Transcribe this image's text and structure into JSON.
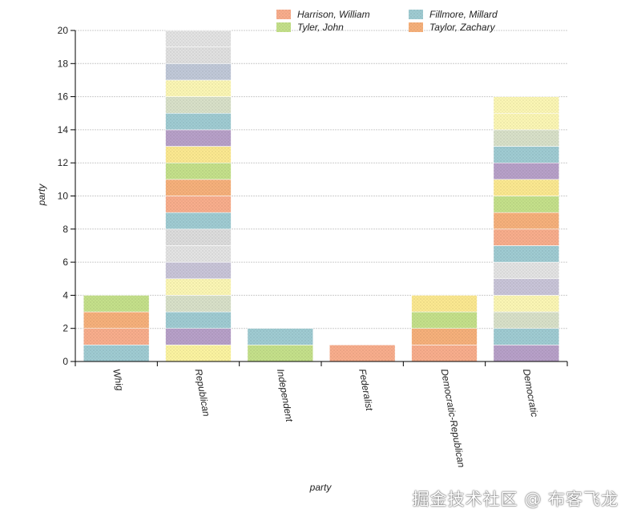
{
  "chart_data": {
    "type": "bar",
    "stacked": true,
    "xlabel": "party",
    "ylabel": "party",
    "ylim": [
      0,
      20
    ],
    "yticks": [
      0,
      2,
      4,
      6,
      8,
      10,
      12,
      14,
      16,
      18,
      20
    ],
    "grid": true,
    "legend_position": "top-right",
    "categories": [
      "Whig",
      "Republican",
      "Independent",
      "Federalist",
      "Democratic-Republican",
      "Democratic"
    ],
    "legend": [
      {
        "name": "Harrison, William",
        "color": "#f8ad8c"
      },
      {
        "name": "Fillmore, Millard",
        "color": "#9fcbd2"
      },
      {
        "name": "Tyler, John",
        "color": "#c4e08a"
      },
      {
        "name": "Taylor, Zachary",
        "color": "#f6b07b"
      }
    ],
    "stacks": [
      [
        "#9fcbd2",
        "#f8ad8c",
        "#f6b07b",
        "#c4e08a"
      ],
      [
        "#fbf3a0",
        "#b7a0c8",
        "#9fcbd2",
        "#d8e0c8",
        "#fbf6b4",
        "#c8c4d8",
        "#e3e3e3",
        "#dcdcdc",
        "#9fcbd2",
        "#f8ad8c",
        "#f6b07b",
        "#c4e08a",
        "#fbe890",
        "#b7a0c8",
        "#9fcbd2",
        "#d8e0c8",
        "#fbf6b4",
        "#c0c8d8",
        "#e0e0e0",
        "#e3e3e3"
      ],
      [
        "#c4e08a",
        "#9fcbd2"
      ],
      [
        "#f8ad8c"
      ],
      [
        "#f8ad8c",
        "#f6b07b",
        "#c4e08a",
        "#fbe890"
      ],
      [
        "#b7a0c8",
        "#9fcbd2",
        "#d8e0c8",
        "#fbf6b4",
        "#c8c4d8",
        "#e3e3e3",
        "#9fcbd2",
        "#f8ad8c",
        "#f6b07b",
        "#c4e08a",
        "#fbe890",
        "#b7a0c8",
        "#9fcbd2",
        "#d8e0c8",
        "#fbf6b4",
        "#fbf6b4"
      ]
    ],
    "values": [
      4,
      20,
      2,
      1,
      4,
      16
    ]
  },
  "watermark": "掘金技术社区 @ 布客飞龙"
}
